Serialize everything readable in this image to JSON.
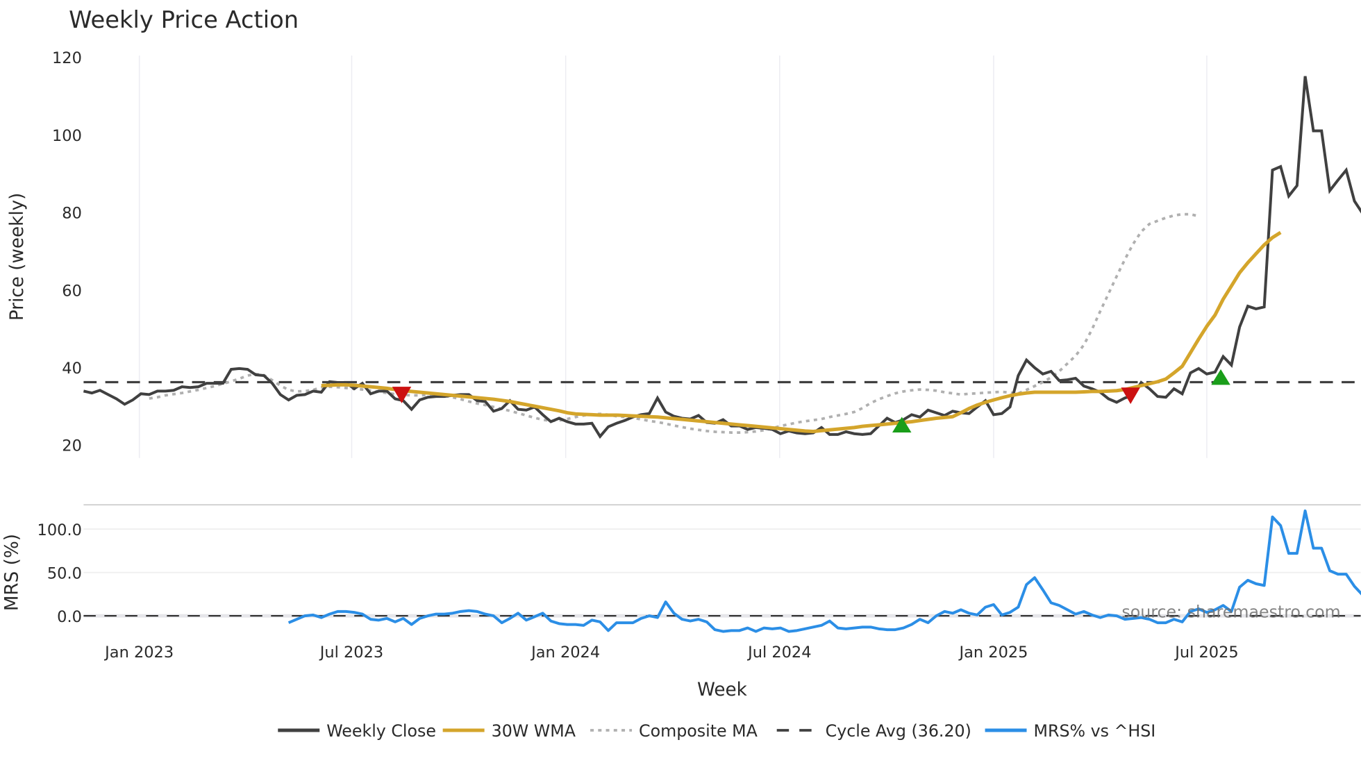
{
  "header": {
    "title": "Weekly Price Action"
  },
  "price_panel": {
    "ylabel": "Price (weekly)",
    "yticks": [
      "120",
      "100",
      "80",
      "60",
      "40",
      "20"
    ],
    "ytick_values": [
      120,
      100,
      80,
      60,
      40,
      20
    ]
  },
  "mrs_panel": {
    "ylabel": "MRS (%)",
    "yticks": [
      "100.0",
      "50.0",
      "0.0"
    ],
    "ytick_values": [
      100,
      50,
      0
    ],
    "watermark": "source: sharemaestro.com"
  },
  "xaxis": {
    "title": "Week",
    "ticks": [
      "Jan 2023",
      "Jul 2023",
      "Jan 2024",
      "Jul 2024",
      "Jan 2025",
      "Jul 2025"
    ]
  },
  "legend": {
    "items": [
      {
        "label": "Weekly Close",
        "color": "#404040",
        "style": "solid"
      },
      {
        "label": "30W WMA",
        "color": "#d4a52b",
        "style": "solid"
      },
      {
        "label": "Composite MA",
        "color": "#b0b0b0",
        "style": "dotted"
      },
      {
        "label": "Cycle Avg (36.20)",
        "color": "#404040",
        "style": "dashed"
      },
      {
        "label": "MRS% vs ^HSI",
        "color": "#2b8ee6",
        "style": "solid"
      }
    ]
  },
  "colors": {
    "close": "#404040",
    "wma": "#d4a52b",
    "composite": "#b0b0b0",
    "cycle": "#404040",
    "mrs": "#2b8ee6",
    "buy_marker": "#1a9e1a",
    "sell_marker": "#cc1111",
    "grid": "#ececf2"
  },
  "chart_data": [
    {
      "type": "line",
      "title": "Weekly Price Action",
      "xlabel": "Week",
      "ylabel": "Price (weekly)",
      "ylim": [
        18,
        121
      ],
      "x_tick_labels": [
        "Jan 2023",
        "Jul 2023",
        "Jan 2024",
        "Jul 2024",
        "Jan 2025",
        "Jul 2025"
      ],
      "x_start_week_index": 0,
      "x_tick_week_index": [
        6.8,
        32.7,
        58.8,
        84.9,
        111.0,
        137.0
      ],
      "grid": true,
      "legend_position": "bottom",
      "cycle_avg": 36.2,
      "series": [
        {
          "name": "Weekly Close",
          "values": [
            33.9,
            33.4,
            34.1,
            33.0,
            31.9,
            30.5,
            31.6,
            33.2,
            33.0,
            33.9,
            33.9,
            34.1,
            35.0,
            34.8,
            35.0,
            35.9,
            35.9,
            35.9,
            39.5,
            39.7,
            39.5,
            38.1,
            37.9,
            35.9,
            33.0,
            31.6,
            32.8,
            33.0,
            33.9,
            33.6,
            36.3,
            36.1,
            36.1,
            34.5,
            35.9,
            33.2,
            33.9,
            33.9,
            31.9,
            31.4,
            29.2,
            31.6,
            32.3,
            32.5,
            32.5,
            32.8,
            33.0,
            33.0,
            31.4,
            31.2,
            28.7,
            29.4,
            31.4,
            29.2,
            29.0,
            29.8,
            27.8,
            26.0,
            26.9,
            26.0,
            25.4,
            25.4,
            25.6,
            22.2,
            24.7,
            25.6,
            26.3,
            27.2,
            27.8,
            28.1,
            32.1,
            28.5,
            27.4,
            26.9,
            26.7,
            27.6,
            25.8,
            25.6,
            26.5,
            24.9,
            24.9,
            24.0,
            24.5,
            24.3,
            24.0,
            22.9,
            23.6,
            23.1,
            22.9,
            23.1,
            24.5,
            22.7,
            22.7,
            23.4,
            22.9,
            22.7,
            22.9,
            24.9,
            26.9,
            25.8,
            26.5,
            27.8,
            27.2,
            29.0,
            28.3,
            27.6,
            28.7,
            28.3,
            28.1,
            29.8,
            31.4,
            27.8,
            28.1,
            29.8,
            37.9,
            41.9,
            39.9,
            38.3,
            39.0,
            36.6,
            36.8,
            37.2,
            35.2,
            34.5,
            33.6,
            31.9,
            31.0,
            32.1,
            32.8,
            36.1,
            34.5,
            32.5,
            32.3,
            34.5,
            33.2,
            38.6,
            39.7,
            38.3,
            38.8,
            42.8,
            40.6,
            50.4,
            55.8,
            55.1,
            55.6,
            90.9,
            91.8,
            84.2,
            86.9,
            115.1,
            101.0,
            101.0,
            85.6,
            88.3,
            90.9,
            82.9,
            79.7
          ]
        },
        {
          "name": "30W WMA",
          "start_week_index": 29,
          "values": [
            35.3,
            35.4,
            35.5,
            35.5,
            35.4,
            35.2,
            35.0,
            34.8,
            34.6,
            34.3,
            34.0,
            33.8,
            33.6,
            33.4,
            33.2,
            33.0,
            32.8,
            32.6,
            32.4,
            32.2,
            32.0,
            31.8,
            31.5,
            31.2,
            30.8,
            30.4,
            30.0,
            29.6,
            29.2,
            28.8,
            28.3,
            28.0,
            27.9,
            27.8,
            27.7,
            27.7,
            27.7,
            27.6,
            27.5,
            27.4,
            27.3,
            27.2,
            27.0,
            26.8,
            26.6,
            26.4,
            26.2,
            26.0,
            25.8,
            25.6,
            25.4,
            25.2,
            25.0,
            24.8,
            24.6,
            24.4,
            24.2,
            24.0,
            23.8,
            23.6,
            23.5,
            23.7,
            23.9,
            24.1,
            24.3,
            24.5,
            24.8,
            25.0,
            25.2,
            25.4,
            25.6,
            25.8,
            26.0,
            26.3,
            26.6,
            26.9,
            27.1,
            27.3,
            28.3,
            29.4,
            30.3,
            31.0,
            31.6,
            32.2,
            32.7,
            33.1,
            33.4,
            33.6,
            33.6,
            33.6,
            33.6,
            33.6,
            33.6,
            33.7,
            33.8,
            33.8,
            33.9,
            34.0,
            34.3,
            34.8,
            35.3,
            35.8,
            36.3,
            37.0,
            38.6,
            40.3,
            43.8,
            47.3,
            50.6,
            53.5,
            57.6,
            61.0,
            64.4,
            67.0,
            69.3,
            71.6,
            73.5,
            74.8
          ]
        },
        {
          "name": "Composite MA",
          "start_week_index": 8,
          "values": [
            32.0,
            32.3,
            32.8,
            33.1,
            33.4,
            33.8,
            34.2,
            34.7,
            35.2,
            35.8,
            36.4,
            37.1,
            37.9,
            38.3,
            38.0,
            36.7,
            35.3,
            34.2,
            33.8,
            33.9,
            34.2,
            34.8,
            35.0,
            34.9,
            34.7,
            34.5,
            34.3,
            34.0,
            33.7,
            33.4,
            33.1,
            32.9,
            32.8,
            32.8,
            32.9,
            33.0,
            32.7,
            32.3,
            31.8,
            31.2,
            30.7,
            30.3,
            29.8,
            29.3,
            28.8,
            28.2,
            27.6,
            27.0,
            26.5,
            26.2,
            26.3,
            26.7,
            27.2,
            27.6,
            27.8,
            28.0,
            27.8,
            27.4,
            27.2,
            27.0,
            26.6,
            26.2,
            25.9,
            25.5,
            25.0,
            24.6,
            24.2,
            23.9,
            23.6,
            23.4,
            23.3,
            23.2,
            23.2,
            23.3,
            23.5,
            23.8,
            24.3,
            24.9,
            25.3,
            25.8,
            26.1,
            26.4,
            26.7,
            27.2,
            27.6,
            28.0,
            28.5,
            29.5,
            30.8,
            31.8,
            32.6,
            33.3,
            33.8,
            34.1,
            34.3,
            34.2,
            34.0,
            33.6,
            33.3,
            33.0,
            33.2,
            33.3,
            33.5,
            33.6,
            33.7,
            33.5,
            33.3,
            34.2,
            35.2,
            36.2,
            37.4,
            39.0,
            41.0,
            43.0,
            45.8,
            49.8,
            54.5,
            59.0,
            63.5,
            67.8,
            71.8,
            75.0,
            77.0,
            77.8,
            78.6,
            79.2,
            79.5,
            79.5,
            79.0
          ]
        },
        {
          "name": "Cycle Avg (36.20)",
          "values": [
            36.2
          ]
        }
      ],
      "markers": [
        {
          "type": "sell",
          "week_index": 38.8,
          "value": 33.0
        },
        {
          "type": "buy",
          "week_index": 99.8,
          "value": 25.0
        },
        {
          "type": "sell",
          "week_index": 127.7,
          "value": 32.8
        },
        {
          "type": "buy",
          "week_index": 138.7,
          "value": 37.3
        }
      ]
    },
    {
      "type": "line",
      "title": "",
      "ylabel": "MRS (%)",
      "ylim": [
        -15,
        128
      ],
      "zero_line": true,
      "series": [
        {
          "name": "MRS% vs ^HSI",
          "start_week_index": 25,
          "values": [
            -8,
            -4,
            0,
            1,
            -2,
            2,
            5,
            5,
            4,
            2,
            -4,
            -5,
            -3,
            -7,
            -3,
            -10,
            -3,
            0,
            2,
            2,
            3,
            5,
            6,
            5,
            2,
            0,
            -8,
            -3,
            3,
            -5,
            -1,
            3,
            -6,
            -9,
            -10,
            -10,
            -11,
            -5,
            -7,
            -17,
            -8,
            -8,
            -8,
            -3,
            0,
            -2,
            16,
            3,
            -4,
            -6,
            -4,
            -7,
            -16,
            -18,
            -17,
            -17,
            -14,
            -18,
            -14,
            -15,
            -14,
            -18,
            -17,
            -15,
            -13,
            -11,
            -6,
            -14,
            -15,
            -14,
            -13,
            -13,
            -15,
            -16,
            -16,
            -14,
            -10,
            -4,
            -8,
            0,
            5,
            3,
            7,
            3,
            1,
            10,
            13,
            1,
            4,
            10,
            36,
            44,
            30,
            15,
            12,
            7,
            2,
            5,
            1,
            -2,
            1,
            0,
            -4,
            -3,
            -2,
            -4,
            -8,
            -8,
            -4,
            -7,
            5,
            8,
            4,
            7,
            12,
            5,
            33,
            41,
            37,
            35,
            114,
            104,
            72,
            72,
            121,
            78,
            78,
            52,
            48,
            48,
            34,
            24
          ]
        }
      ]
    }
  ]
}
